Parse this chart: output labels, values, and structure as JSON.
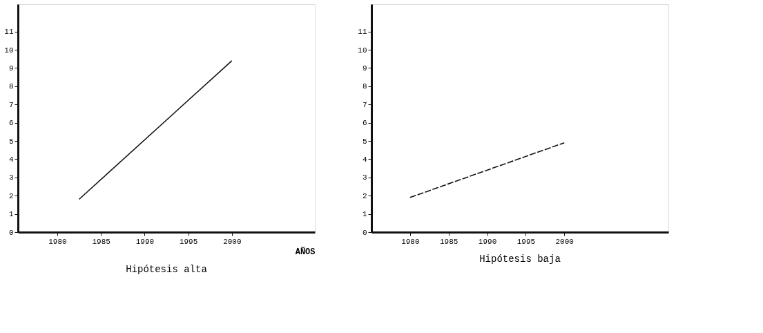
{
  "chart_data": [
    {
      "type": "line",
      "title": "Hipótesis alta",
      "xlabel": "AÑOS",
      "x": [
        1982.5,
        2000
      ],
      "xlim": [
        1975.5,
        2009.5
      ],
      "xticks": [
        1980,
        1985,
        1990,
        1995,
        2000
      ],
      "ylim": [
        0,
        12.5
      ],
      "yticks": [
        0,
        1,
        2,
        3,
        4,
        5,
        6,
        7,
        8,
        9,
        10,
        11
      ],
      "series": [
        {
          "color": "#111111",
          "values": [
            1.8,
            9.4
          ]
        }
      ],
      "line_style": "solid",
      "marker": "none",
      "grid": false,
      "legend": false
    },
    {
      "type": "line",
      "title": "Hipótesis baja",
      "x": [
        1980,
        2000
      ],
      "xlim": [
        1975,
        2013.5
      ],
      "xticks": [
        1980,
        1985,
        1990,
        1995,
        2000
      ],
      "ylim": [
        0,
        12.5
      ],
      "yticks": [
        0,
        1,
        2,
        3,
        4,
        5,
        6,
        7,
        8,
        9,
        10,
        11
      ],
      "series": [
        {
          "color": "#111111",
          "values": [
            1.9,
            4.9
          ]
        }
      ],
      "line_style": "dashed",
      "marker": "none",
      "grid": false,
      "legend": false
    }
  ]
}
